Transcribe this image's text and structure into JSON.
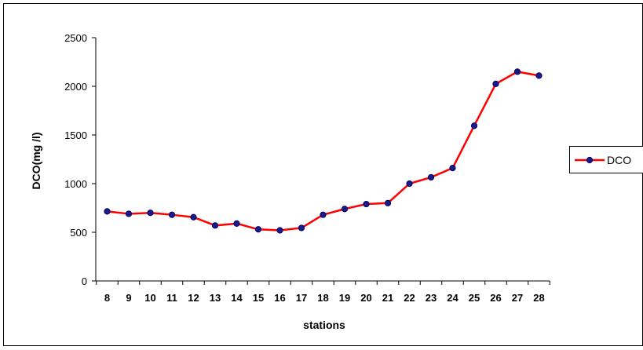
{
  "chart_data": {
    "type": "line",
    "title": "",
    "xlabel": "stations",
    "ylabel": "DCO(mg /l)",
    "categories": [
      "8",
      "9",
      "10",
      "11",
      "12",
      "13",
      "14",
      "15",
      "16",
      "17",
      "18",
      "19",
      "20",
      "21",
      "22",
      "23",
      "24",
      "25",
      "26",
      "27",
      "28"
    ],
    "series": [
      {
        "name": "DCO",
        "values": [
          715,
          690,
          700,
          680,
          655,
          570,
          590,
          530,
          520,
          545,
          680,
          740,
          790,
          800,
          1000,
          1065,
          1160,
          1595,
          2025,
          2150,
          2110
        ]
      }
    ],
    "ylim": [
      0,
      2500
    ],
    "yticks": [
      "0",
      "500",
      "1000",
      "1500",
      "2000",
      "2500"
    ],
    "grid": false,
    "legend_position": "right",
    "colors": {
      "line": "#ff0000",
      "marker": "#1a1a8a",
      "marker_edge": "#000066",
      "axis": "#000000",
      "frame": "#000000"
    }
  }
}
